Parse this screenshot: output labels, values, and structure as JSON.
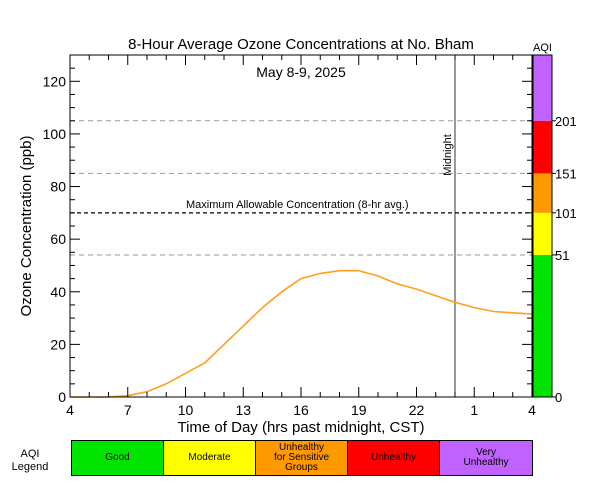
{
  "chart_data": {
    "type": "line",
    "title": "8-Hour Average Ozone Concentrations at No. Bham",
    "subtitle": "May 8-9, 2025",
    "xlabel": "Time of Day (hrs past midnight, CST)",
    "ylabel": "Ozone Concentration (ppb)",
    "x_ticks": [
      "4",
      "7",
      "10",
      "13",
      "16",
      "19",
      "22",
      "1",
      "4"
    ],
    "y_ticks": [
      "0",
      "20",
      "40",
      "60",
      "80",
      "100",
      "120"
    ],
    "x_range_hours": [
      4,
      28
    ],
    "ylim": [
      0,
      130
    ],
    "x_hours": [
      4,
      5,
      6,
      7,
      8,
      9,
      10,
      11,
      12,
      13,
      14,
      15,
      16,
      17,
      18,
      19,
      20,
      21,
      22,
      23,
      24,
      25,
      26,
      27,
      28
    ],
    "values": [
      0,
      0,
      0,
      0.5,
      2,
      5,
      9,
      13,
      20,
      27,
      34,
      40,
      45,
      47,
      48,
      48,
      46,
      43,
      41,
      38.5,
      36,
      34,
      32.5,
      32,
      31.5
    ],
    "line_color": "#FF9F1C",
    "reference_line": {
      "y": 70,
      "label": "Maximum Allowable Concentration (8-hr avg.)"
    },
    "dashed_gridlines": [
      54,
      85,
      105
    ],
    "midnight": {
      "x_hour": 24,
      "label": "Midnight"
    },
    "aqi_bar": {
      "title": "AQI",
      "segments": [
        {
          "from": 0,
          "to": 54,
          "color": "#00E400"
        },
        {
          "from": 54,
          "to": 70,
          "color": "#FFFF00"
        },
        {
          "from": 70,
          "to": 85,
          "color": "#FF9900"
        },
        {
          "from": 85,
          "to": 105,
          "color": "#FF0000"
        },
        {
          "from": 105,
          "to": 130,
          "color": "#C062FF"
        }
      ],
      "labels": [
        {
          "y": 0,
          "text": "0"
        },
        {
          "y": 54,
          "text": "51"
        },
        {
          "y": 70,
          "text": "101"
        },
        {
          "y": 85,
          "text": "151"
        },
        {
          "y": 105,
          "text": "201"
        }
      ]
    }
  },
  "legend": {
    "title": "AQI\nLegend",
    "items": [
      {
        "label": "Good",
        "color": "#00E400"
      },
      {
        "label": "Moderate",
        "color": "#FFFF00"
      },
      {
        "label": "Unhealthy\nfor Sensitive\nGroups",
        "color": "#FF9900"
      },
      {
        "label": "Unhealthy",
        "color": "#FF0000"
      },
      {
        "label": "Very\nUnhealthy",
        "color": "#C062FF"
      }
    ]
  }
}
